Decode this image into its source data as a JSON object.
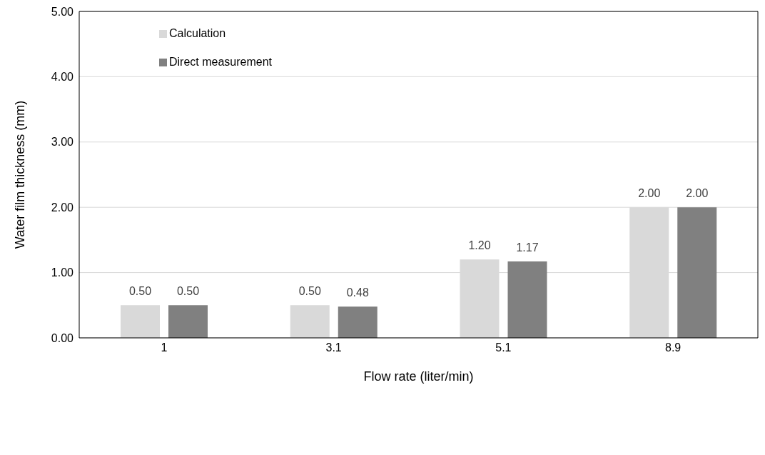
{
  "chart_data": {
    "type": "bar",
    "xlabel": "Flow rate (liter/min)",
    "ylabel": "Water film thickness (mm)",
    "categories": [
      "1",
      "3.1",
      "5.1",
      "8.9"
    ],
    "series": [
      {
        "name": "Calculation",
        "color": "#d9d9d9",
        "values": [
          0.5,
          0.5,
          1.2,
          2.0
        ],
        "value_labels": [
          "0.50",
          "0.50",
          "1.20",
          "2.00"
        ]
      },
      {
        "name": "Direct measurement",
        "color": "#808080",
        "values": [
          0.5,
          0.48,
          1.17,
          2.0
        ],
        "value_labels": [
          "0.50",
          "0.48",
          "1.17",
          "2.00"
        ]
      }
    ],
    "ylim": [
      0,
      5
    ],
    "yticks": [
      {
        "value": 0,
        "label": "0.00"
      },
      {
        "value": 1,
        "label": "1.00"
      },
      {
        "value": 2,
        "label": "2.00"
      },
      {
        "value": 3,
        "label": "3.00"
      },
      {
        "value": 4,
        "label": "4.00"
      },
      {
        "value": 5,
        "label": "5.00"
      }
    ],
    "grid": "y",
    "legend": "top left"
  }
}
